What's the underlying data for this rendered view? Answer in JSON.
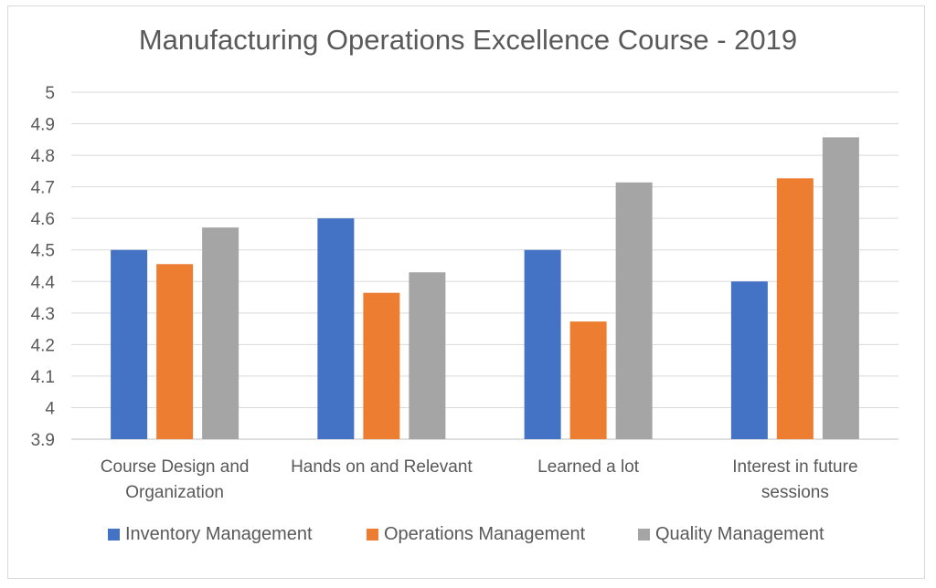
{
  "chart_data": {
    "type": "bar",
    "title": "Manufacturing Operations Excellence Course - 2019",
    "categories": [
      "Course Design and Organization",
      "Hands on and Relevant",
      "Learned a lot",
      "Interest in future sessions"
    ],
    "series": [
      {
        "name": "Inventory Management",
        "color": "#4472c4",
        "values": [
          4.5,
          4.6,
          4.5,
          4.4
        ]
      },
      {
        "name": "Operations Management",
        "color": "#ed7d31",
        "values": [
          4.455,
          4.364,
          4.273,
          4.727
        ]
      },
      {
        "name": "Quality Management",
        "color": "#a5a5a5",
        "values": [
          4.571,
          4.429,
          4.714,
          4.857
        ]
      }
    ],
    "ylim": [
      3.9,
      5
    ],
    "yticks": [
      "3.9",
      "4",
      "4.1",
      "4.2",
      "4.3",
      "4.4",
      "4.5",
      "4.6",
      "4.7",
      "4.8",
      "4.9",
      "5"
    ],
    "grid": true,
    "legend": "bottom",
    "xlabel": "",
    "ylabel": ""
  }
}
